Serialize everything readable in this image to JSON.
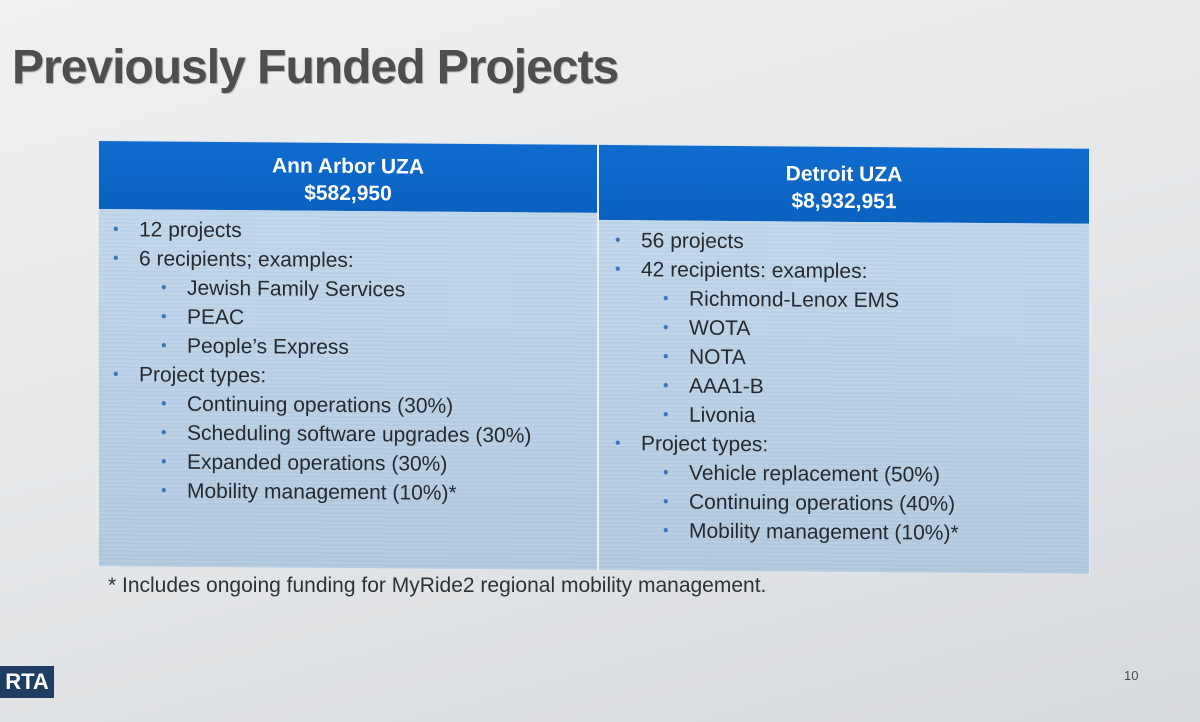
{
  "slide": {
    "title": "Previously Funded Projects",
    "page_number": "10",
    "logo_text": "RTA",
    "footnote": "* Includes ongoing funding for MyRide2 regional mobility management."
  },
  "columns": {
    "left": {
      "name": "Ann Arbor UZA",
      "amount": "$582,950",
      "items": [
        {
          "text": "12 projects",
          "sub": []
        },
        {
          "text": "6 recipients; examples:",
          "sub": [
            "Jewish Family Services",
            "PEAC",
            "People’s Express"
          ]
        },
        {
          "text": "Project types:",
          "sub": [
            "Continuing operations  (30%)",
            "Scheduling software upgrades (30%)",
            "Expanded operations (30%)",
            "Mobility management (10%)*"
          ]
        }
      ]
    },
    "right": {
      "name": "Detroit UZA",
      "amount": "$8,932,951",
      "items": [
        {
          "text": "56 projects",
          "sub": []
        },
        {
          "text": "42 recipients: examples:",
          "sub": [
            "Richmond-Lenox EMS",
            "WOTA",
            "NOTA",
            "AAA1-B",
            "Livonia"
          ]
        },
        {
          "text": "Project types:",
          "sub": [
            "Vehicle replacement (50%)",
            "Continuing operations (40%)",
            "Mobility management (10%)*"
          ]
        }
      ]
    }
  },
  "colors": {
    "header_blue": "#0a61c0",
    "cell_blue": "#b9d2e9",
    "logo_navy": "#1f3e63",
    "title_gray": "#4e4e4e"
  },
  "icons": {
    "bullet": "bullet-dot-icon"
  }
}
